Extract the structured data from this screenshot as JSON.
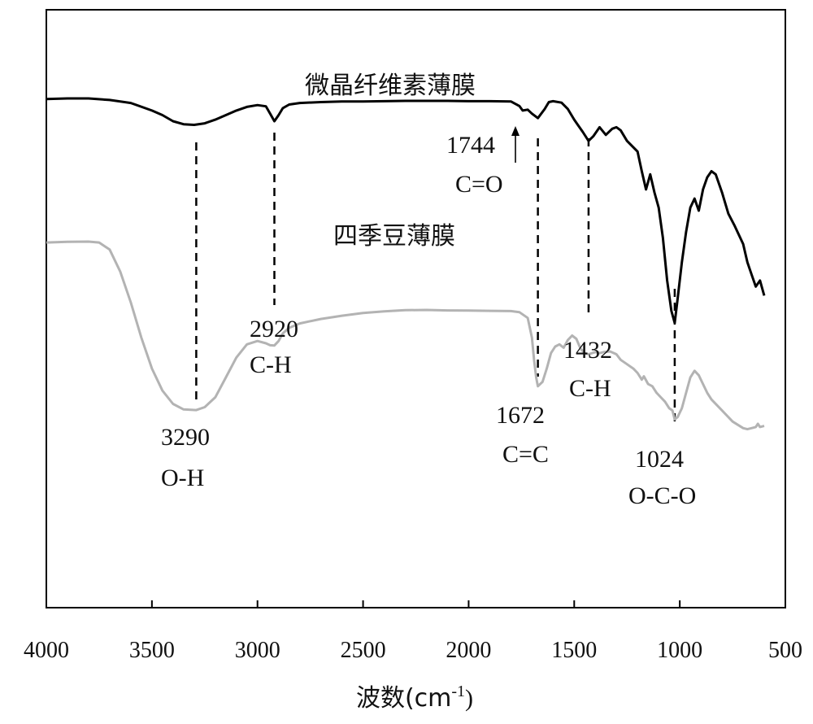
{
  "chart_data": {
    "type": "line",
    "xlabel": "波数(cm",
    "xlabel_sup": "-1",
    "xlabel_close": ")",
    "xlim": [
      4000,
      500
    ],
    "x_ticks": [
      "4000",
      "3500",
      "3000",
      "2500",
      "2000",
      "1500",
      "1000",
      "500"
    ],
    "x_tick_values": [
      4000,
      3500,
      3000,
      2500,
      2000,
      1500,
      1000,
      500
    ],
    "y_ticks_shown": false,
    "colors": {
      "series_1": "#000000",
      "series_2": "#b3b3b3",
      "axis": "#000000"
    },
    "series": [
      {
        "name": "微晶纤维素薄膜",
        "x": [
          4000,
          3900,
          3800,
          3700,
          3600,
          3500,
          3450,
          3400,
          3350,
          3300,
          3250,
          3200,
          3150,
          3100,
          3050,
          3000,
          2960,
          2940,
          2920,
          2900,
          2880,
          2850,
          2800,
          2700,
          2600,
          2500,
          2400,
          2300,
          2200,
          2100,
          2000,
          1900,
          1800,
          1760,
          1744,
          1720,
          1700,
          1672,
          1640,
          1620,
          1600,
          1560,
          1530,
          1500,
          1480,
          1460,
          1432,
          1410,
          1380,
          1350,
          1320,
          1300,
          1280,
          1250,
          1200,
          1180,
          1160,
          1140,
          1120,
          1100,
          1080,
          1060,
          1040,
          1024,
          1010,
          990,
          970,
          950,
          930,
          910,
          890,
          870,
          850,
          830,
          800,
          770,
          740,
          700,
          680,
          660,
          640,
          620,
          600
        ],
        "y": [
          99.8,
          100,
          100,
          99.5,
          98.5,
          96,
          94.5,
          92.5,
          91.5,
          91.3,
          91.8,
          93,
          94.5,
          96,
          97.2,
          97.8,
          97.4,
          95,
          92.5,
          94.5,
          96.8,
          98,
          98.5,
          98.8,
          99,
          99,
          99.1,
          99.2,
          99.2,
          99.2,
          99.1,
          99.1,
          99,
          97.5,
          96,
          96.3,
          95,
          93.5,
          96.5,
          98.8,
          99.1,
          98.6,
          96.5,
          93,
          91,
          89,
          86,
          87.5,
          90.5,
          88,
          90,
          90.5,
          89.5,
          86,
          82.5,
          76,
          70,
          75,
          69,
          64,
          54,
          40,
          30,
          26,
          34,
          46,
          56,
          64,
          67,
          63,
          70,
          74,
          76,
          75,
          69,
          62,
          58,
          52,
          46,
          42,
          38,
          40,
          35
        ]
      },
      {
        "name": "四季豆薄膜",
        "x": [
          4000,
          3900,
          3800,
          3750,
          3700,
          3650,
          3600,
          3550,
          3500,
          3450,
          3400,
          3350,
          3290,
          3250,
          3200,
          3150,
          3100,
          3050,
          3000,
          2960,
          2940,
          2920,
          2900,
          2880,
          2850,
          2800,
          2700,
          2600,
          2500,
          2400,
          2300,
          2200,
          2100,
          2000,
          1900,
          1800,
          1760,
          1720,
          1700,
          1690,
          1680,
          1672,
          1650,
          1630,
          1610,
          1590,
          1570,
          1550,
          1530,
          1510,
          1490,
          1470,
          1450,
          1432,
          1400,
          1380,
          1360,
          1330,
          1300,
          1280,
          1250,
          1220,
          1200,
          1180,
          1170,
          1150,
          1130,
          1110,
          1090,
          1070,
          1050,
          1035,
          1024,
          1010,
          990,
          970,
          950,
          930,
          910,
          890,
          870,
          850,
          800,
          750,
          700,
          680,
          660,
          640,
          630,
          620,
          600
        ],
        "y": [
          85.2,
          85.5,
          85.6,
          85.2,
          82,
          72,
          58,
          42,
          28,
          18,
          12,
          9.5,
          9.2,
          10.5,
          15,
          24,
          33,
          39,
          40.5,
          39.5,
          38.6,
          38.5,
          40.5,
          44,
          46.5,
          48.5,
          50.5,
          52,
          53.2,
          54,
          54.5,
          54.6,
          54.4,
          54.3,
          54.2,
          54.1,
          53.6,
          51,
          42,
          32,
          24,
          20,
          22,
          28,
          35,
          38,
          39,
          37.5,
          41,
          43,
          41.5,
          37,
          35,
          34.5,
          35.5,
          35,
          35.5,
          35.8,
          34.5,
          32,
          30,
          28,
          26,
          23,
          24.5,
          21,
          20,
          17,
          15,
          13,
          10,
          9,
          5,
          6,
          10,
          17,
          24,
          27,
          25,
          21,
          17,
          14,
          9,
          4,
          1,
          0.5,
          1,
          1.5,
          3,
          1.5,
          2
        ]
      }
    ],
    "dashed_markers": [
      3290,
      2920,
      1672,
      1432,
      1024
    ],
    "annotations": [
      {
        "value": "3290",
        "group": "O-H"
      },
      {
        "value": "2920",
        "group": "C-H"
      },
      {
        "value": "1744",
        "group": "C=O"
      },
      {
        "value": "1672",
        "group": "C=C"
      },
      {
        "value": "1432",
        "group": "C-H"
      },
      {
        "value": "1024",
        "group": "O-C-O"
      }
    ]
  }
}
